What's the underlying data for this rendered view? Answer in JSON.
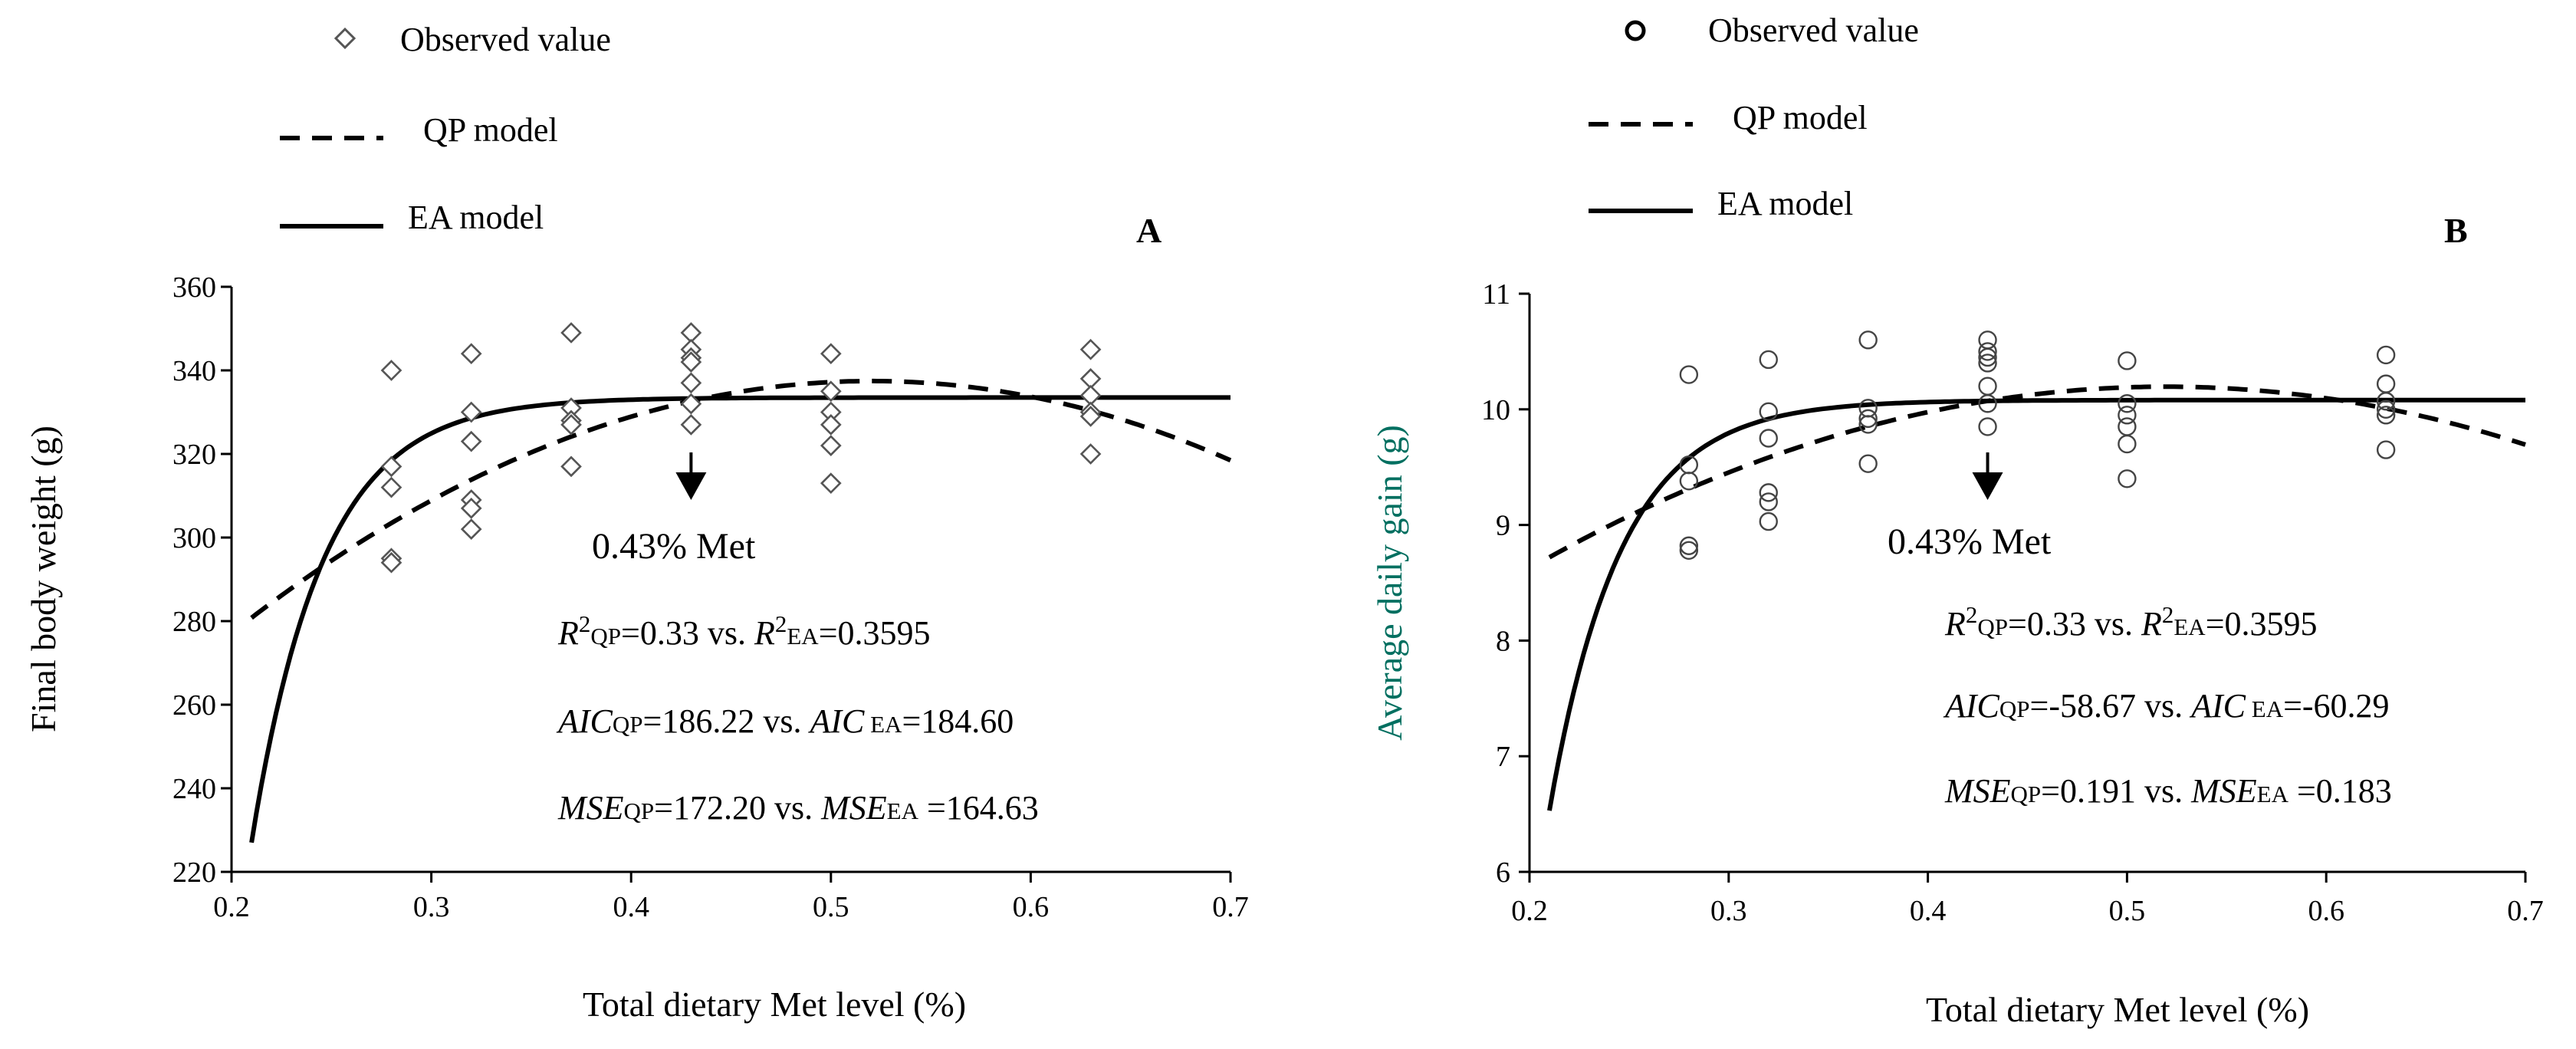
{
  "chart_data": [
    {
      "type": "scatter",
      "panel": "A",
      "xlabel": "Total dietary Met level (%)",
      "ylabel": "Final body weight (g)",
      "xlim": [
        0.2,
        0.7
      ],
      "ylim": [
        220,
        360
      ],
      "xticks": [
        "0.2",
        "0.3",
        "0.4",
        "0.5",
        "0.6",
        "0.7"
      ],
      "yticks": [
        "220",
        "240",
        "260",
        "280",
        "300",
        "320",
        "340",
        "360"
      ],
      "marker": "diamond",
      "legend": {
        "observed": "Observed value",
        "qp": "QP model",
        "ea": "EA model"
      },
      "observed": [
        {
          "x": 0.28,
          "y": 340
        },
        {
          "x": 0.28,
          "y": 317
        },
        {
          "x": 0.28,
          "y": 312
        },
        {
          "x": 0.28,
          "y": 295
        },
        {
          "x": 0.28,
          "y": 294
        },
        {
          "x": 0.32,
          "y": 344
        },
        {
          "x": 0.32,
          "y": 330
        },
        {
          "x": 0.32,
          "y": 323
        },
        {
          "x": 0.32,
          "y": 309
        },
        {
          "x": 0.32,
          "y": 307
        },
        {
          "x": 0.32,
          "y": 302
        },
        {
          "x": 0.37,
          "y": 349
        },
        {
          "x": 0.37,
          "y": 331
        },
        {
          "x": 0.37,
          "y": 328
        },
        {
          "x": 0.37,
          "y": 327
        },
        {
          "x": 0.37,
          "y": 317
        },
        {
          "x": 0.43,
          "y": 349
        },
        {
          "x": 0.43,
          "y": 345
        },
        {
          "x": 0.43,
          "y": 343
        },
        {
          "x": 0.43,
          "y": 342
        },
        {
          "x": 0.43,
          "y": 337
        },
        {
          "x": 0.43,
          "y": 332
        },
        {
          "x": 0.43,
          "y": 327
        },
        {
          "x": 0.5,
          "y": 344
        },
        {
          "x": 0.5,
          "y": 335
        },
        {
          "x": 0.5,
          "y": 330
        },
        {
          "x": 0.5,
          "y": 327
        },
        {
          "x": 0.5,
          "y": 322
        },
        {
          "x": 0.5,
          "y": 313
        },
        {
          "x": 0.63,
          "y": 345
        },
        {
          "x": 0.63,
          "y": 338
        },
        {
          "x": 0.63,
          "y": 334
        },
        {
          "x": 0.63,
          "y": 330
        },
        {
          "x": 0.63,
          "y": 329
        },
        {
          "x": 0.63,
          "y": 320
        }
      ],
      "qp_model": {
        "a": 178.2,
        "b": 612,
        "c": -588,
        "x_min": 0.21,
        "x_max": 0.7
      },
      "ea_model": {
        "plateau": 333.5,
        "amplitude": 106.5,
        "rate": 28,
        "x0": 0.21,
        "x_min": 0.21,
        "x_max": 0.7
      },
      "annotation": {
        "x": 0.43,
        "label": "0.43% Met"
      },
      "stats": {
        "r2": {
          "name": "R",
          "sup": "2",
          "qp_sub": "QP",
          "qp_val": "=0.33",
          "vs": " vs. ",
          "ea_sub": "EA",
          "ea_val": "=0.3595"
        },
        "aic": {
          "name": "AIC",
          "qp_sub": "QP",
          "qp_val": "=186.22",
          "vs": " vs. ",
          "ea_sub": " EA",
          "ea_val": "=184.60"
        },
        "mse": {
          "name": "MSE",
          "qp_sub": "QP",
          "qp_val": "=172.20",
          "vs": " vs. ",
          "ea_sub": "EA",
          "ea_val": " =164.63"
        }
      }
    },
    {
      "type": "scatter",
      "panel": "B",
      "xlabel": "Total dietary Met level (%)",
      "ylabel": "Average daily gain (g)",
      "xlim": [
        0.2,
        0.7
      ],
      "ylim": [
        6,
        11
      ],
      "xticks": [
        "0.2",
        "0.3",
        "0.4",
        "0.5",
        "0.6",
        "0.7"
      ],
      "yticks": [
        "6",
        "7",
        "8",
        "9",
        "10",
        "11"
      ],
      "marker": "circle",
      "legend": {
        "observed": "Observed value",
        "qp": "QP model",
        "ea": "EA model"
      },
      "observed": [
        {
          "x": 0.28,
          "y": 10.3
        },
        {
          "x": 0.28,
          "y": 9.52
        },
        {
          "x": 0.28,
          "y": 9.38
        },
        {
          "x": 0.28,
          "y": 8.82
        },
        {
          "x": 0.28,
          "y": 8.78
        },
        {
          "x": 0.32,
          "y": 10.43
        },
        {
          "x": 0.32,
          "y": 9.98
        },
        {
          "x": 0.32,
          "y": 9.75
        },
        {
          "x": 0.32,
          "y": 9.28
        },
        {
          "x": 0.32,
          "y": 9.2
        },
        {
          "x": 0.32,
          "y": 9.03
        },
        {
          "x": 0.37,
          "y": 10.6
        },
        {
          "x": 0.37,
          "y": 10.01
        },
        {
          "x": 0.37,
          "y": 9.92
        },
        {
          "x": 0.37,
          "y": 9.87
        },
        {
          "x": 0.37,
          "y": 9.53
        },
        {
          "x": 0.43,
          "y": 10.6
        },
        {
          "x": 0.43,
          "y": 10.5
        },
        {
          "x": 0.43,
          "y": 10.45
        },
        {
          "x": 0.43,
          "y": 10.4
        },
        {
          "x": 0.43,
          "y": 10.2
        },
        {
          "x": 0.43,
          "y": 10.05
        },
        {
          "x": 0.43,
          "y": 9.85
        },
        {
          "x": 0.5,
          "y": 10.42
        },
        {
          "x": 0.5,
          "y": 10.05
        },
        {
          "x": 0.5,
          "y": 9.95
        },
        {
          "x": 0.5,
          "y": 9.85
        },
        {
          "x": 0.5,
          "y": 9.7
        },
        {
          "x": 0.5,
          "y": 9.4
        },
        {
          "x": 0.63,
          "y": 10.47
        },
        {
          "x": 0.63,
          "y": 10.22
        },
        {
          "x": 0.63,
          "y": 10.07
        },
        {
          "x": 0.63,
          "y": 10.0
        },
        {
          "x": 0.63,
          "y": 9.95
        },
        {
          "x": 0.63,
          "y": 9.65
        }
      ],
      "qp_model": {
        "a": 6.04,
        "b": 16.0,
        "c": -15.4,
        "x_min": 0.21,
        "x_max": 0.7
      },
      "ea_model": {
        "plateau": 10.08,
        "amplitude": 3.55,
        "rate": 28,
        "x0": 0.21,
        "x_min": 0.21,
        "x_max": 0.7
      },
      "annotation": {
        "x": 0.43,
        "label": "0.43% Met"
      },
      "stats": {
        "r2": {
          "name": "R",
          "sup": "2",
          "qp_sub": "QP",
          "qp_val": "=0.33",
          "vs": " vs. ",
          "ea_sub": "EA",
          "ea_val": "=0.3595"
        },
        "aic": {
          "name": "AIC",
          "qp_sub": "QP",
          "qp_val": "=-58.67",
          "vs": " vs. ",
          "ea_sub": " EA",
          "ea_val": "=-60.29"
        },
        "mse": {
          "name": "MSE",
          "qp_sub": "QP",
          "qp_val": "=0.191",
          "vs": " vs. ",
          "ea_sub": "EA",
          "ea_val": " =0.183"
        }
      }
    }
  ]
}
